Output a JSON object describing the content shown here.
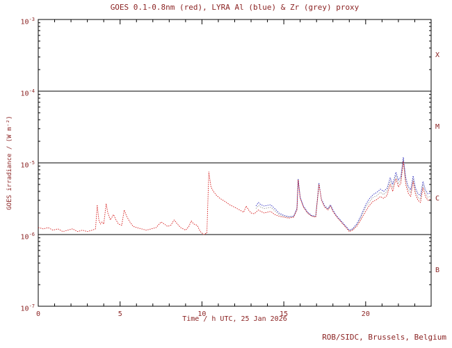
{
  "credit": "ROB/SIDC, Brussels, Belgium",
  "colors": {
    "background": "#ffffff",
    "axis": "#000000",
    "text": "#8b2323",
    "goes_red": "#d41414",
    "lyra_al_blue": "#2828be",
    "lyra_zr_grey": "#9c9c9c"
  },
  "chart_data": {
    "type": "line",
    "title": "GOES 0.1-0.8nm (red), LYRA Al (blue) & Zr (grey) proxy",
    "xlabel": "Time / h UTC, 25 Jan 2026",
    "ylabel": "GOES irradiance / (W m⁻²)",
    "xlim": [
      0,
      24
    ],
    "x_minor_tick_step": 1,
    "x_ticks_labeled": [
      0,
      5,
      10,
      15,
      20
    ],
    "ylim_exp": [
      -7,
      -3
    ],
    "y_tick_exponents": [
      -3,
      -4,
      -5,
      -6,
      -7
    ],
    "hline_exponents": [
      -4,
      -5,
      -6
    ],
    "flare_classes": [
      {
        "label": "X",
        "center_exp": -3.5
      },
      {
        "label": "M",
        "center_exp": -4.5
      },
      {
        "label": "C",
        "center_exp": -5.5
      },
      {
        "label": "B",
        "center_exp": -6.5
      }
    ],
    "grid": false,
    "legend": "encoded in title",
    "series": [
      {
        "name": "LYRA Zr proxy",
        "color_key": "lyra_zr_grey",
        "points": [
          [
            13.3,
            2.3e-06
          ],
          [
            13.45,
            2.55e-06
          ],
          [
            13.6,
            2.4e-06
          ],
          [
            13.8,
            2.3e-06
          ],
          [
            14.0,
            2.35e-06
          ],
          [
            14.2,
            2.4e-06
          ],
          [
            14.45,
            2.15e-06
          ],
          [
            14.7,
            1.9e-06
          ],
          [
            15.0,
            1.8e-06
          ],
          [
            15.3,
            1.74e-06
          ],
          [
            15.6,
            1.78e-06
          ],
          [
            15.8,
            2.25e-06
          ],
          [
            15.88,
            5.9e-06
          ],
          [
            16.0,
            3.25e-06
          ],
          [
            16.2,
            2.45e-06
          ],
          [
            16.45,
            2e-06
          ],
          [
            16.7,
            1.82e-06
          ],
          [
            16.95,
            1.78e-06
          ],
          [
            17.15,
            5.1e-06
          ],
          [
            17.3,
            3.05e-06
          ],
          [
            17.5,
            2.45e-06
          ],
          [
            17.7,
            2.25e-06
          ],
          [
            17.85,
            2.55e-06
          ],
          [
            18.0,
            2.15e-06
          ],
          [
            18.2,
            1.82e-06
          ],
          [
            18.5,
            1.52e-06
          ],
          [
            18.8,
            1.28e-06
          ],
          [
            19.0,
            1.12e-06
          ],
          [
            19.2,
            1.18e-06
          ],
          [
            19.45,
            1.35e-06
          ],
          [
            19.7,
            1.7e-06
          ],
          [
            20.0,
            2.4e-06
          ],
          [
            20.2,
            2.8e-06
          ],
          [
            20.45,
            3.3e-06
          ],
          [
            20.7,
            3.5e-06
          ],
          [
            20.9,
            3.9e-06
          ],
          [
            21.1,
            3.6e-06
          ],
          [
            21.3,
            4e-06
          ],
          [
            21.5,
            5.6e-06
          ],
          [
            21.65,
            4.5e-06
          ],
          [
            21.85,
            6.7e-06
          ],
          [
            22.0,
            5.1e-06
          ],
          [
            22.15,
            5.8e-06
          ],
          [
            22.3,
            1.12e-05
          ],
          [
            22.45,
            5.6e-06
          ],
          [
            22.6,
            4.3e-06
          ],
          [
            22.75,
            3.8e-06
          ],
          [
            22.9,
            6e-06
          ],
          [
            23.05,
            4e-06
          ],
          [
            23.2,
            3.3e-06
          ],
          [
            23.35,
            3.1e-06
          ],
          [
            23.5,
            5e-06
          ],
          [
            23.65,
            3.8e-06
          ],
          [
            23.8,
            3.3e-06
          ],
          [
            23.95,
            3.4e-06
          ]
        ]
      },
      {
        "name": "LYRA Al proxy",
        "color_key": "lyra_al_blue",
        "points": [
          [
            13.3,
            2.5e-06
          ],
          [
            13.45,
            2.8e-06
          ],
          [
            13.6,
            2.6e-06
          ],
          [
            13.8,
            2.5e-06
          ],
          [
            14.0,
            2.55e-06
          ],
          [
            14.2,
            2.6e-06
          ],
          [
            14.45,
            2.3e-06
          ],
          [
            14.7,
            2e-06
          ],
          [
            15.0,
            1.85e-06
          ],
          [
            15.3,
            1.78e-06
          ],
          [
            15.6,
            1.8e-06
          ],
          [
            15.8,
            2.3e-06
          ],
          [
            15.88,
            6e-06
          ],
          [
            16.0,
            3.3e-06
          ],
          [
            16.2,
            2.5e-06
          ],
          [
            16.45,
            2.05e-06
          ],
          [
            16.7,
            1.85e-06
          ],
          [
            16.95,
            1.8e-06
          ],
          [
            17.15,
            5.2e-06
          ],
          [
            17.3,
            3.1e-06
          ],
          [
            17.5,
            2.5e-06
          ],
          [
            17.7,
            2.3e-06
          ],
          [
            17.85,
            2.6e-06
          ],
          [
            18.0,
            2.2e-06
          ],
          [
            18.2,
            1.85e-06
          ],
          [
            18.5,
            1.55e-06
          ],
          [
            18.8,
            1.3e-06
          ],
          [
            19.0,
            1.15e-06
          ],
          [
            19.2,
            1.2e-06
          ],
          [
            19.45,
            1.4e-06
          ],
          [
            19.7,
            1.8e-06
          ],
          [
            20.0,
            2.6e-06
          ],
          [
            20.2,
            3.1e-06
          ],
          [
            20.45,
            3.6e-06
          ],
          [
            20.7,
            3.9e-06
          ],
          [
            20.9,
            4.3e-06
          ],
          [
            21.1,
            4e-06
          ],
          [
            21.3,
            4.4e-06
          ],
          [
            21.5,
            6.2e-06
          ],
          [
            21.65,
            5e-06
          ],
          [
            21.85,
            7.4e-06
          ],
          [
            22.0,
            5.7e-06
          ],
          [
            22.15,
            6.4e-06
          ],
          [
            22.3,
            1.2e-05
          ],
          [
            22.45,
            6.2e-06
          ],
          [
            22.6,
            4.7e-06
          ],
          [
            22.75,
            4.2e-06
          ],
          [
            22.9,
            6.6e-06
          ],
          [
            23.05,
            4.4e-06
          ],
          [
            23.2,
            3.7e-06
          ],
          [
            23.35,
            3.5e-06
          ],
          [
            23.5,
            5.5e-06
          ],
          [
            23.65,
            4.2e-06
          ],
          [
            23.8,
            3.7e-06
          ],
          [
            23.95,
            3.8e-06
          ]
        ]
      },
      {
        "name": "GOES 0.1-0.8nm",
        "color_key": "goes_red",
        "points": [
          [
            0.0,
            1.25e-06
          ],
          [
            0.3,
            1.2e-06
          ],
          [
            0.6,
            1.25e-06
          ],
          [
            0.9,
            1.15e-06
          ],
          [
            1.2,
            1.2e-06
          ],
          [
            1.5,
            1.1e-06
          ],
          [
            1.8,
            1.15e-06
          ],
          [
            2.1,
            1.2e-06
          ],
          [
            2.4,
            1.1e-06
          ],
          [
            2.7,
            1.15e-06
          ],
          [
            3.0,
            1.1e-06
          ],
          [
            3.3,
            1.15e-06
          ],
          [
            3.5,
            1.2e-06
          ],
          [
            3.6,
            2.6e-06
          ],
          [
            3.7,
            1.6e-06
          ],
          [
            3.8,
            1.4e-06
          ],
          [
            3.9,
            1.5e-06
          ],
          [
            4.0,
            1.4e-06
          ],
          [
            4.15,
            2.7e-06
          ],
          [
            4.25,
            2e-06
          ],
          [
            4.4,
            1.6e-06
          ],
          [
            4.6,
            1.9e-06
          ],
          [
            4.75,
            1.6e-06
          ],
          [
            4.9,
            1.4e-06
          ],
          [
            5.1,
            1.35e-06
          ],
          [
            5.25,
            2.2e-06
          ],
          [
            5.4,
            1.8e-06
          ],
          [
            5.6,
            1.5e-06
          ],
          [
            5.8,
            1.3e-06
          ],
          [
            6.0,
            1.25e-06
          ],
          [
            6.3,
            1.2e-06
          ],
          [
            6.6,
            1.15e-06
          ],
          [
            6.9,
            1.2e-06
          ],
          [
            7.2,
            1.25e-06
          ],
          [
            7.5,
            1.5e-06
          ],
          [
            7.7,
            1.4e-06
          ],
          [
            7.9,
            1.3e-06
          ],
          [
            8.1,
            1.35e-06
          ],
          [
            8.3,
            1.6e-06
          ],
          [
            8.5,
            1.4e-06
          ],
          [
            8.7,
            1.25e-06
          ],
          [
            9.0,
            1.15e-06
          ],
          [
            9.2,
            1.3e-06
          ],
          [
            9.35,
            1.55e-06
          ],
          [
            9.5,
            1.4e-06
          ],
          [
            9.7,
            1.35e-06
          ],
          [
            9.9,
            1.1e-06
          ],
          [
            10.1,
            1e-06
          ],
          [
            10.3,
            1.05e-06
          ],
          [
            10.42,
            7.5e-06
          ],
          [
            10.55,
            4.6e-06
          ],
          [
            10.7,
            4e-06
          ],
          [
            10.9,
            3.5e-06
          ],
          [
            11.1,
            3.2e-06
          ],
          [
            11.4,
            2.9e-06
          ],
          [
            11.7,
            2.6e-06
          ],
          [
            12.0,
            2.4e-06
          ],
          [
            12.3,
            2.2e-06
          ],
          [
            12.55,
            2.05e-06
          ],
          [
            12.7,
            2.5e-06
          ],
          [
            12.85,
            2.2e-06
          ],
          [
            13.0,
            2e-06
          ],
          [
            13.2,
            1.95e-06
          ],
          [
            13.45,
            2.2e-06
          ],
          [
            13.6,
            2.1e-06
          ],
          [
            13.8,
            2e-06
          ],
          [
            14.0,
            2.05e-06
          ],
          [
            14.2,
            2.1e-06
          ],
          [
            14.45,
            1.9e-06
          ],
          [
            14.7,
            1.8e-06
          ],
          [
            15.0,
            1.75e-06
          ],
          [
            15.3,
            1.7e-06
          ],
          [
            15.6,
            1.75e-06
          ],
          [
            15.8,
            2.2e-06
          ],
          [
            15.88,
            5.8e-06
          ],
          [
            16.0,
            3.2e-06
          ],
          [
            16.2,
            2.4e-06
          ],
          [
            16.45,
            2e-06
          ],
          [
            16.7,
            1.8e-06
          ],
          [
            16.95,
            1.75e-06
          ],
          [
            17.15,
            5e-06
          ],
          [
            17.3,
            3e-06
          ],
          [
            17.5,
            2.4e-06
          ],
          [
            17.7,
            2.2e-06
          ],
          [
            17.85,
            2.5e-06
          ],
          [
            18.0,
            2.1e-06
          ],
          [
            18.2,
            1.8e-06
          ],
          [
            18.5,
            1.5e-06
          ],
          [
            18.8,
            1.25e-06
          ],
          [
            19.0,
            1.1e-06
          ],
          [
            19.2,
            1.15e-06
          ],
          [
            19.45,
            1.3e-06
          ],
          [
            19.7,
            1.6e-06
          ],
          [
            20.0,
            2.1e-06
          ],
          [
            20.2,
            2.5e-06
          ],
          [
            20.45,
            2.9e-06
          ],
          [
            20.7,
            3.1e-06
          ],
          [
            20.9,
            3.4e-06
          ],
          [
            21.1,
            3.2e-06
          ],
          [
            21.3,
            3.5e-06
          ],
          [
            21.5,
            5e-06
          ],
          [
            21.65,
            4e-06
          ],
          [
            21.85,
            6e-06
          ],
          [
            22.0,
            4.6e-06
          ],
          [
            22.15,
            5.2e-06
          ],
          [
            22.3,
            1.05e-05
          ],
          [
            22.45,
            5e-06
          ],
          [
            22.6,
            3.8e-06
          ],
          [
            22.75,
            3.4e-06
          ],
          [
            22.9,
            5.5e-06
          ],
          [
            23.05,
            3.6e-06
          ],
          [
            23.2,
            3e-06
          ],
          [
            23.35,
            2.8e-06
          ],
          [
            23.5,
            4.5e-06
          ],
          [
            23.65,
            3.4e-06
          ],
          [
            23.8,
            3e-06
          ],
          [
            23.95,
            3.1e-06
          ]
        ]
      }
    ]
  }
}
